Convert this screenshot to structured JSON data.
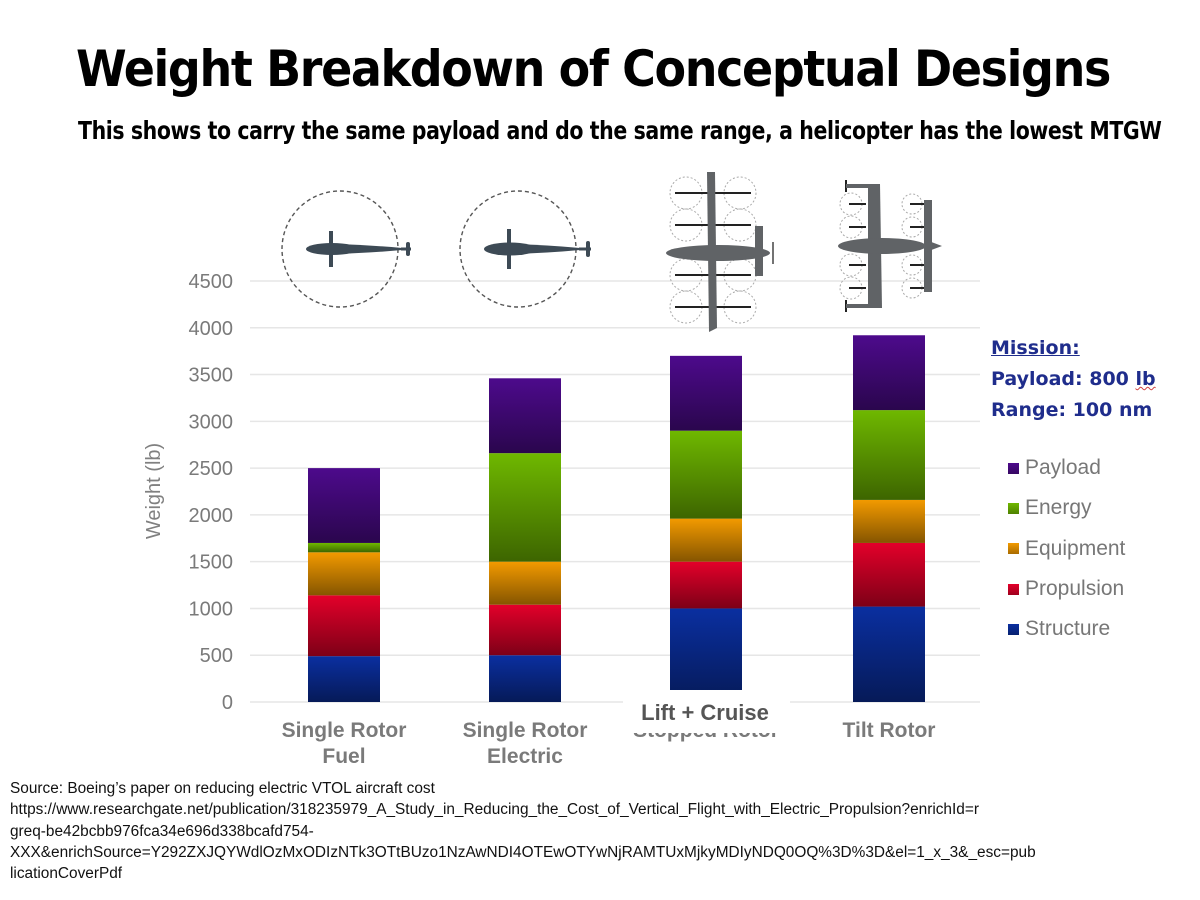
{
  "slide": {
    "title": "Weight Breakdown of Conceptual Designs",
    "subtitle": "This shows to carry the same payload and do the same range, a helicopter has the lowest MTGW"
  },
  "mission": {
    "heading": "Mission:",
    "payload_label": "Payload: 800 ",
    "payload_unit": "lb",
    "range": "Range: 100 nm"
  },
  "overlay_label": "Lift + Cruise",
  "aircraft_icons": [
    "single-rotor-helicopter-icon",
    "single-rotor-helicopter-icon",
    "lift-cruise-aircraft-icon",
    "tilt-rotor-aircraft-icon"
  ],
  "source": {
    "lines": [
      "Source: Boeing’s paper on reducing electric VTOL aircraft cost",
      "https://www.researchgate.net/publication/318235979_A_Study_in_Reducing_the_Cost_of_Vertical_Flight_with_Electric_Propulsion?enrichId=r",
      "greq-be42bcbb976fca34e696d338bcafd754-",
      "XXX&enrichSource=Y292ZXJQYWdlOzMxODIzNTk3OTtBUzo1NzAwNDI4OTEwOTYwNjRAMTUxMjkyMDIyNDQ0OQ%3D%3D&el=1_x_3&_esc=pub",
      "licationCoverPdf"
    ]
  },
  "chart_data": {
    "type": "bar",
    "stacked": true,
    "title": "",
    "xlabel": "",
    "ylabel": "Weight (lb)",
    "ylim": [
      0,
      4500
    ],
    "yticks": [
      0,
      500,
      1000,
      1500,
      2000,
      2500,
      3000,
      3500,
      4000,
      4500
    ],
    "grid": true,
    "legend_position": "right",
    "categories": [
      [
        "Single Rotor",
        "Fuel"
      ],
      [
        "Single Rotor",
        "Electric"
      ],
      [
        "Stopped Rotor"
      ],
      [
        "Tilt Rotor"
      ]
    ],
    "series": [
      {
        "name": "Structure",
        "color": "#0a2fa0",
        "values": [
          490,
          500,
          1000,
          1020
        ]
      },
      {
        "name": "Propulsion",
        "color": "#e3002a",
        "values": [
          650,
          540,
          500,
          680
        ]
      },
      {
        "name": "Equipment",
        "color": "#f29a00",
        "values": [
          460,
          460,
          460,
          460
        ]
      },
      {
        "name": "Energy",
        "color": "#6fb800",
        "values": [
          100,
          1160,
          940,
          960
        ]
      },
      {
        "name": "Payload",
        "color": "#4d0a8c",
        "values": [
          800,
          800,
          800,
          800
        ]
      }
    ],
    "legend_order": [
      "Payload",
      "Energy",
      "Equipment",
      "Propulsion",
      "Structure"
    ]
  }
}
